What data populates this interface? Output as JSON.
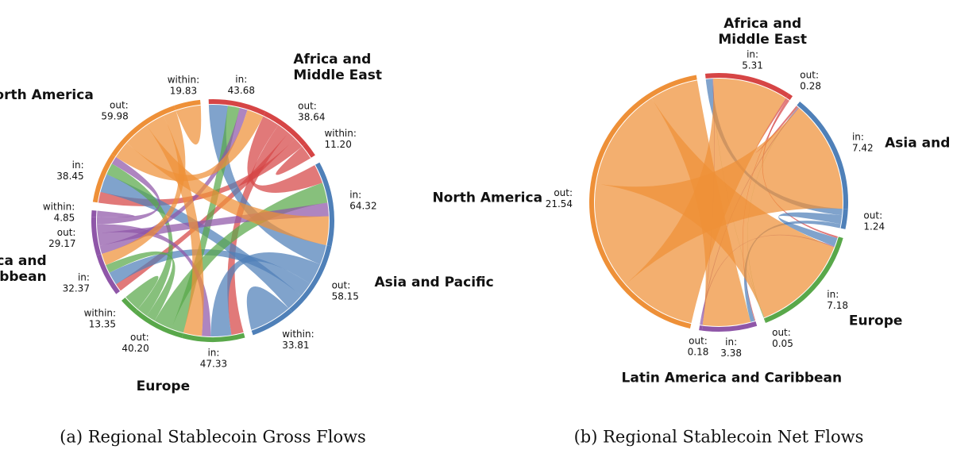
{
  "chart_data": [
    {
      "type": "chord",
      "title": "(a) Regional Stablecoin Gross Flows",
      "regions": [
        {
          "name": [
            "Africa and",
            "Middle East"
          ],
          "color": "#d64545",
          "segments": [
            "in:",
            "out:",
            "within:"
          ],
          "values": [
            43.68,
            38.64,
            11.2
          ],
          "value_labels": [
            "43.68",
            "38.64",
            "11.20"
          ]
        },
        {
          "name": [
            "Asia and Pacific"
          ],
          "color": "#4f80b8",
          "segments": [
            "in:",
            "out:",
            "within:"
          ],
          "values": [
            64.32,
            58.15,
            33.81
          ],
          "value_labels": [
            "64.32",
            "58.15",
            "33.81"
          ]
        },
        {
          "name": [
            "Europe"
          ],
          "color": "#59a84a",
          "segments": [
            "in:",
            "out:",
            "within:"
          ],
          "values": [
            47.33,
            40.2,
            13.35
          ],
          "value_labels": [
            "47.33",
            "40.20",
            "13.35"
          ]
        },
        {
          "name": [
            "Latin America and",
            "Caribbean"
          ],
          "color": "#8f56a8",
          "segments": [
            "in:",
            "out:",
            "within:"
          ],
          "values": [
            32.37,
            29.17,
            4.85
          ],
          "value_labels": [
            "32.37",
            "29.17",
            "4.85"
          ]
        },
        {
          "name": [
            "North America"
          ],
          "color": "#ee9038",
          "segments": [
            "in:",
            "out:",
            "within:"
          ],
          "values": [
            38.45,
            59.98,
            19.83
          ],
          "value_labels": [
            "38.45",
            "59.98",
            "19.83"
          ]
        }
      ]
    },
    {
      "type": "chord",
      "title": "(b) Regional Stablecoin Net Flows",
      "regions": [
        {
          "name": [
            "Africa and",
            "Middle East"
          ],
          "color": "#d64545",
          "segments": [
            "in:",
            "out:"
          ],
          "values": [
            5.31,
            0.28
          ],
          "value_labels": [
            "5.31",
            "0.28"
          ]
        },
        {
          "name": [
            "Asia and Pacific"
          ],
          "color": "#4f80b8",
          "segments": [
            "in:",
            "out:"
          ],
          "values": [
            7.42,
            1.24
          ],
          "value_labels": [
            "7.42",
            "1.24"
          ]
        },
        {
          "name": [
            "Europe"
          ],
          "color": "#59a84a",
          "segments": [
            "in:",
            "out:"
          ],
          "values": [
            7.18,
            0.05
          ],
          "value_labels": [
            "7.18",
            "0.05"
          ]
        },
        {
          "name": [
            "Latin America and Caribbean"
          ],
          "color": "#8f56a8",
          "segments": [
            "in:",
            "out:"
          ],
          "values": [
            3.38,
            0.18
          ],
          "value_labels": [
            "3.38",
            "0.18"
          ]
        },
        {
          "name": [
            "North America"
          ],
          "color": "#ee9038",
          "segments": [
            "out:"
          ],
          "values": [
            21.54
          ],
          "value_labels": [
            "21.54"
          ]
        }
      ]
    }
  ]
}
